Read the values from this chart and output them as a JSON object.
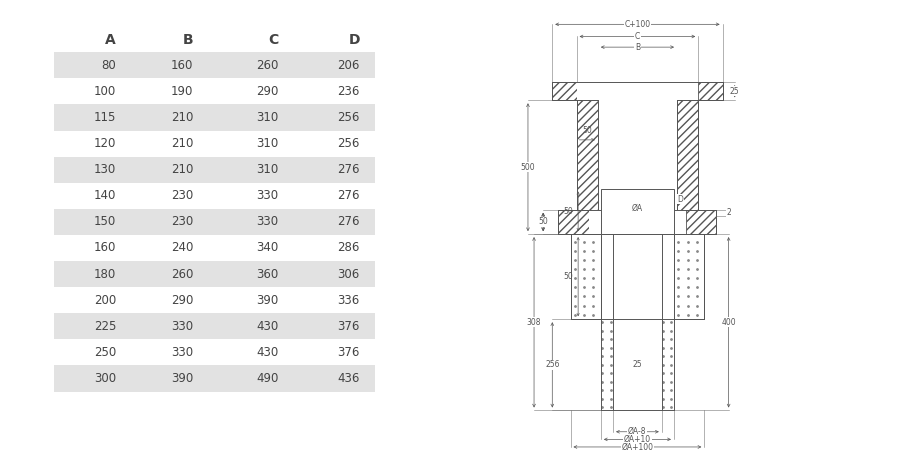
{
  "table_headers": [
    "A",
    "B",
    "C",
    "D"
  ],
  "table_data": [
    [
      80,
      160,
      260,
      206
    ],
    [
      100,
      190,
      290,
      236
    ],
    [
      115,
      210,
      310,
      256
    ],
    [
      120,
      210,
      310,
      256
    ],
    [
      130,
      210,
      310,
      276
    ],
    [
      140,
      230,
      330,
      276
    ],
    [
      150,
      230,
      330,
      276
    ],
    [
      160,
      240,
      340,
      286
    ],
    [
      180,
      260,
      360,
      306
    ],
    [
      200,
      290,
      390,
      336
    ],
    [
      225,
      330,
      430,
      376
    ],
    [
      250,
      330,
      430,
      376
    ],
    [
      300,
      390,
      490,
      436
    ]
  ],
  "shaded_rows": [
    0,
    2,
    4,
    6,
    8,
    10,
    12
  ],
  "row_bg_color": "#e2e2e2",
  "bg_color": "#ffffff",
  "text_color": "#444444",
  "line_color": "#555555",
  "dim_color": "#555555",
  "header_fontsize": 10,
  "cell_fontsize": 8.5,
  "dim_fontsize": 5.5
}
